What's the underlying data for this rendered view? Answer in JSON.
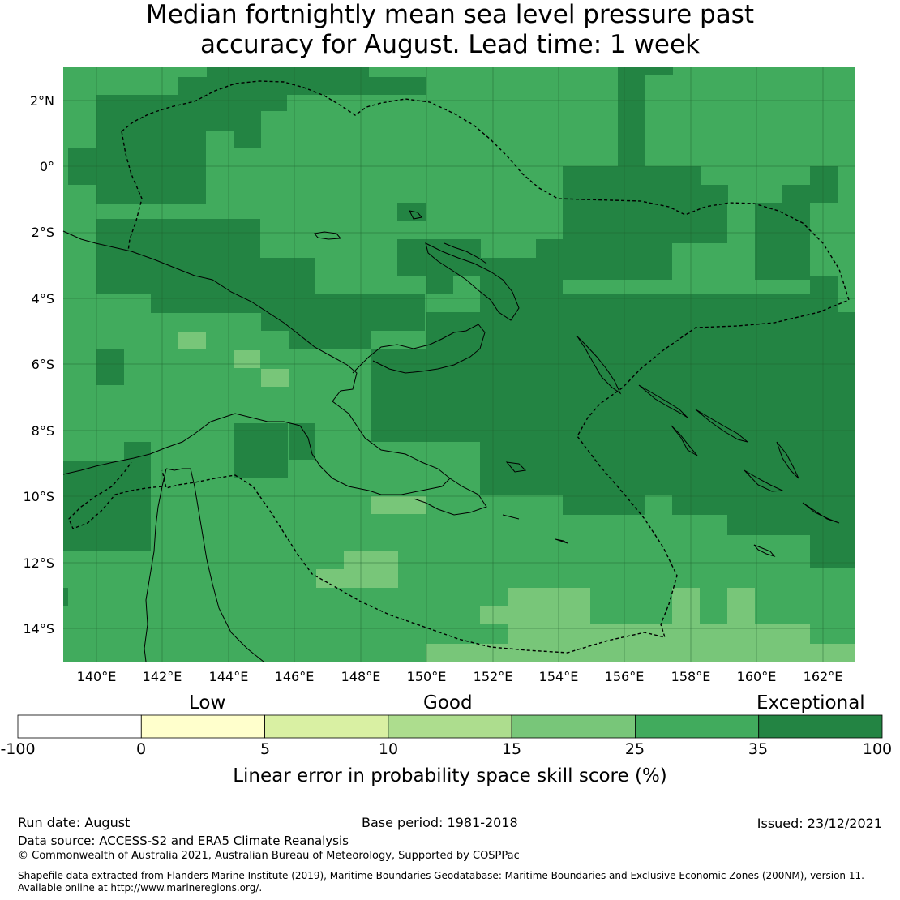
{
  "title": {
    "line1": "Median fortnightly mean sea level pressure past",
    "line2": "accuracy for August. Lead time: 1 week"
  },
  "map": {
    "lat_labels": [
      "2°N",
      "0°",
      "2°S",
      "4°S",
      "6°S",
      "8°S",
      "10°S",
      "12°S",
      "14°S"
    ],
    "lon_labels": [
      "140°E",
      "142°E",
      "144°E",
      "146°E",
      "148°E",
      "150°E",
      "152°E",
      "154°E",
      "156°E",
      "158°E",
      "160°E",
      "162°E"
    ],
    "lon_range": [
      139.0,
      163.0
    ],
    "lat_range": [
      -15.0,
      3.0
    ],
    "gridlines": true
  },
  "colorbar": {
    "categories": [
      "Low",
      "Good",
      "Exceptional"
    ],
    "ticks": [
      "-100",
      "0",
      "5",
      "10",
      "15",
      "25",
      "35",
      "100"
    ],
    "colors": [
      "#ffffff",
      "#ffffcc",
      "#d9f0a3",
      "#addd8e",
      "#78c679",
      "#41ab5d",
      "#238443"
    ],
    "label": "Linear error in probability space skill score (%)"
  },
  "footer": {
    "run_date": "Run date: August",
    "base_period": "Base period: 1981-2018",
    "issued": "Issued: 23/12/2021",
    "data_source": "Data source: ACCESS-S2 and ERA5 Climate Reanalysis",
    "copyright": "© Commonwealth of Australia 2021, Australian Bureau of Meteorology, Supported by COSPPac",
    "shapefile_line1": "Shapefile data extracted from Flanders Marine Institute (2019), Maritime Boundaries Geodatabase: Maritime Boundaries and Exclusive Economic Zones (200NM), version 11.",
    "shapefile_line2": "Available online at http://www.marineregions.org/."
  }
}
